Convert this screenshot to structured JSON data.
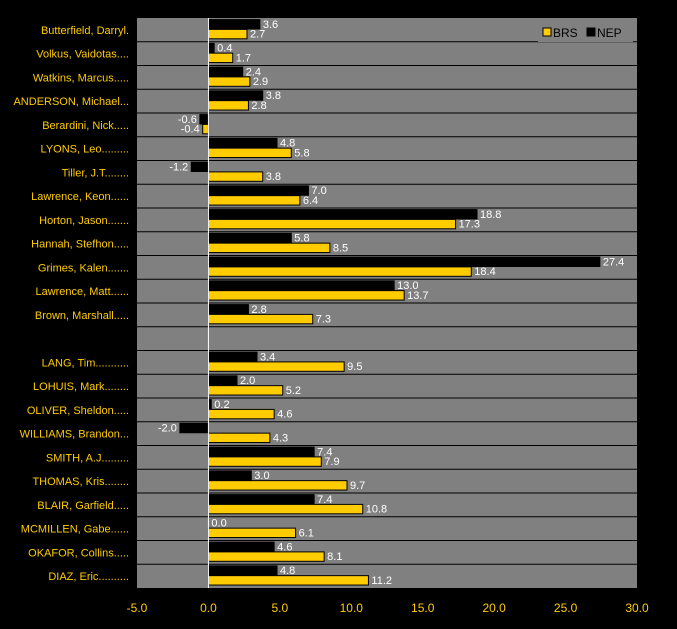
{
  "colors": {
    "background": "#000000",
    "plot_background": "#808080",
    "separator": "#000000",
    "brs_bar": "#FFCC00",
    "nep_bar": "#000000",
    "label_text": "#FFCC00",
    "value_text": "#FFFFFF",
    "axis_text": "#FFCC00"
  },
  "legend": {
    "position": "top-right",
    "items": [
      {
        "name": "BRS",
        "color": "#FFCC00"
      },
      {
        "name": "NEP",
        "color": "#000000"
      }
    ]
  },
  "chart_data": {
    "type": "bar",
    "orientation": "horizontal",
    "title": "",
    "xlabel": "",
    "ylabel": "",
    "xlim": [
      -5.0,
      30.0
    ],
    "x_ticks": [
      -5.0,
      0.0,
      5.0,
      10.0,
      15.0,
      20.0,
      25.0,
      30.0
    ],
    "x_tick_labels": [
      "-5.0",
      "0.0",
      "5.0",
      "10.0",
      "15.0",
      "20.0",
      "25.0",
      "30.0"
    ],
    "grid": false,
    "categories": [
      "Butterfield, Darryl.",
      "Volkus, Vaidotas....",
      "Watkins, Marcus.....",
      "ANDERSON, Michael...",
      "Berardini, Nick.....",
      "LYONS, Leo.........",
      "Tiller, J.T........",
      "Lawrence, Keon......",
      "Horton, Jason.......",
      "Hannah, Stefhon.....",
      "Grimes, Kalen.......",
      "Lawrence, Matt......",
      "Brown, Marshall.....",
      "",
      "LANG, Tim...........",
      "LOHUIS, Mark........",
      "OLIVER, Sheldon.....",
      "WILLIAMS, Brandon...",
      "SMITH, A.J.........",
      "THOMAS, Kris........",
      "BLAIR, Garfield.....",
      "MCMILLEN, Gabe......",
      "OKAFOR, Collins.....",
      "DIAZ, Eric.........."
    ],
    "series": [
      {
        "name": "NEP",
        "values": [
          3.6,
          0.4,
          2.4,
          3.8,
          -0.6,
          4.8,
          -1.2,
          7.0,
          18.8,
          5.8,
          27.4,
          13.0,
          2.8,
          null,
          3.4,
          2.0,
          0.2,
          -2.0,
          7.4,
          3.0,
          7.4,
          0.0,
          4.6,
          4.8
        ],
        "labels": [
          "3.6",
          "0.4",
          "2.4",
          "3.8",
          "-0.6",
          "4.8",
          "-1.2",
          "7.0",
          "18.8",
          "5.8",
          "27.4",
          "13.0",
          "2.8",
          "",
          "3.4",
          "2.0",
          "0.2",
          "-2.0",
          "7.4",
          "3.0",
          "7.4",
          "0.0",
          "4.6",
          "4.8"
        ]
      },
      {
        "name": "BRS",
        "values": [
          2.7,
          1.7,
          2.9,
          2.8,
          -0.4,
          5.8,
          3.8,
          6.4,
          17.3,
          8.5,
          18.4,
          13.7,
          7.3,
          null,
          9.5,
          5.2,
          4.6,
          4.3,
          7.9,
          9.7,
          10.8,
          6.1,
          8.1,
          11.2
        ],
        "labels": [
          "2.7",
          "1.7",
          "2.9",
          "2.8",
          "-0.4",
          "5.8",
          "3.8",
          "6.4",
          "17.3",
          "8.5",
          "18.4",
          "13.7",
          "7.3",
          "",
          "9.5",
          "5.2",
          "4.6",
          "4.3",
          "7.9",
          "9.7",
          "10.8",
          "6.1",
          "8.1",
          "11.2"
        ]
      }
    ]
  }
}
